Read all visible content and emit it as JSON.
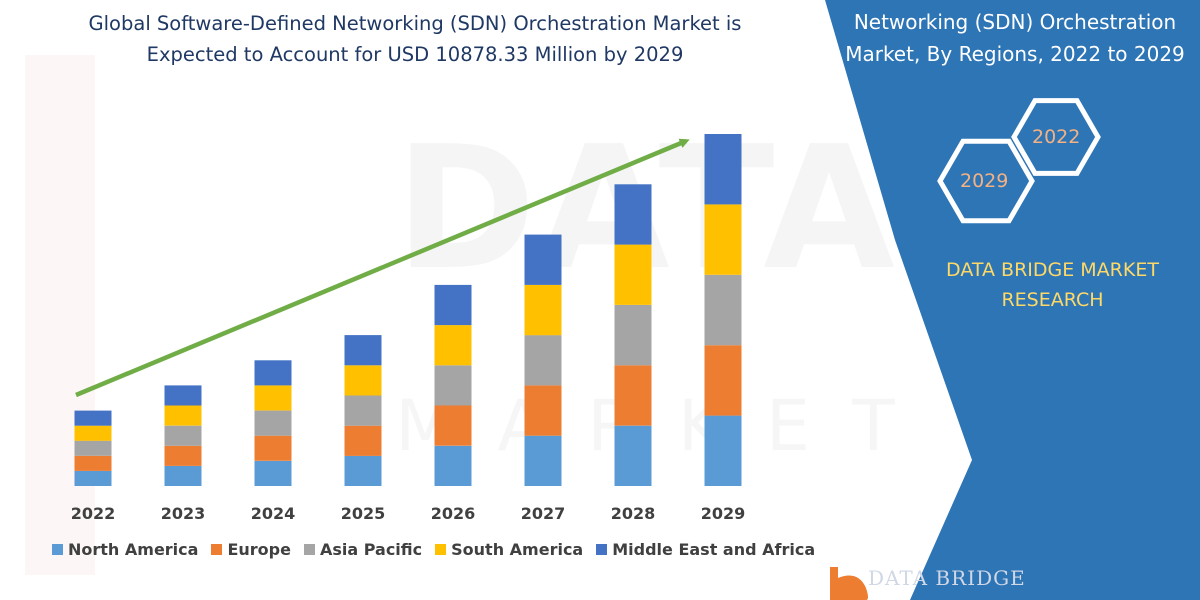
{
  "title": "Global Software-Defined Networking (SDN) Orchestration Market is Expected to Account for USD 10878.33 Million by 2029",
  "panel": {
    "title": "Networking (SDN) Orchestration Market, By Regions, 2022 to 2029",
    "hex_labels": [
      "2022",
      "2029"
    ],
    "company": "DATA BRIDGE MARKET RESEARCH",
    "logo_text": "DATA BRIDGE",
    "colors": {
      "panel_blue": "#2e75b6",
      "company_yellow": "#ffd966",
      "hex_label_orange": "#f4b183"
    }
  },
  "watermark": {
    "big": "DATABRIDGE",
    "small": "MARKET RESEARCH"
  },
  "chart_data": {
    "type": "bar",
    "stacked": true,
    "categories": [
      "2022",
      "2023",
      "2024",
      "2025",
      "2026",
      "2027",
      "2028",
      "2029"
    ],
    "series": [
      {
        "name": "North America",
        "color": "#5b9bd5",
        "values": [
          15,
          20,
          25,
          30,
          40,
          50,
          60,
          70
        ]
      },
      {
        "name": "Europe",
        "color": "#ed7d31",
        "values": [
          15,
          20,
          25,
          30,
          40,
          50,
          60,
          70
        ]
      },
      {
        "name": "Asia Pacific",
        "color": "#a5a5a5",
        "values": [
          15,
          20,
          25,
          30,
          40,
          50,
          60,
          70
        ]
      },
      {
        "name": "South America",
        "color": "#ffc000",
        "values": [
          15,
          20,
          25,
          30,
          40,
          50,
          60,
          70
        ]
      },
      {
        "name": "Middle East and Africa",
        "color": "#4472c4",
        "values": [
          15,
          20,
          25,
          30,
          40,
          50,
          60,
          70
        ]
      }
    ],
    "ylim": [
      0,
      350
    ],
    "grid": false,
    "legend_position": "bottom",
    "trend_arrow_color": "#70ad47"
  }
}
